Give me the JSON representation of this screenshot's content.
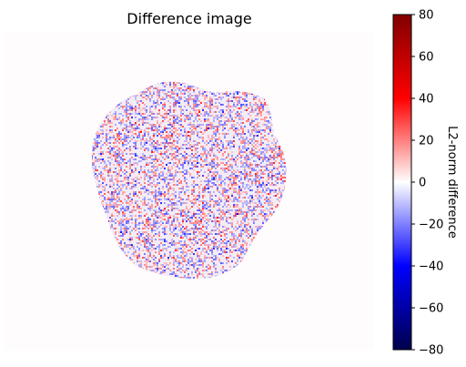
{
  "chart_data": {
    "type": "heatmap",
    "title": "Difference image",
    "colormap": "seismic",
    "colorbar": {
      "label": "L2-norm difference",
      "vmin": -80,
      "vmax": 80,
      "ticks": [
        80,
        60,
        40,
        20,
        0,
        -20,
        -40,
        -60,
        -80
      ],
      "tick_labels": [
        "80",
        "60",
        "40",
        "20",
        "0",
        "−20",
        "−40",
        "−60",
        "−80"
      ]
    },
    "axes_visible": false,
    "background_value": 0,
    "colors": {
      "cmap_dark_blue": "#00004c",
      "cmap_blue": "#0000ff",
      "cmap_white": "#ffffff",
      "cmap_red": "#ff0000",
      "cmap_dark_red": "#800000",
      "image_background": "#fffcfd"
    }
  }
}
